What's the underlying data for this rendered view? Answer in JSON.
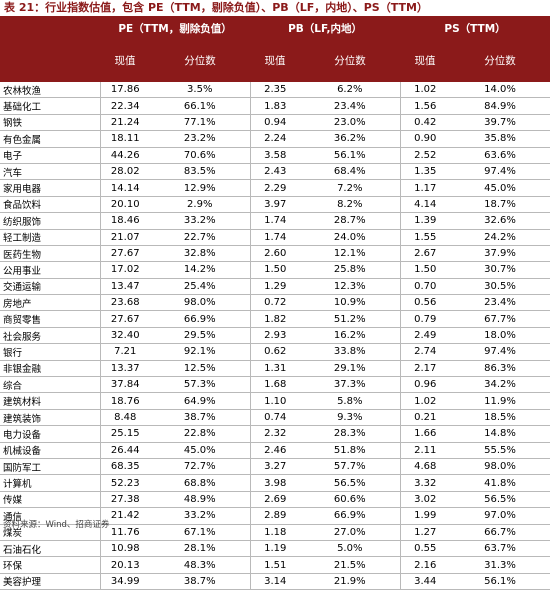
{
  "title": "表 21：行业指数估值，包含 PE（TTM，剔除负值）、PB（LF，内地）、PS（TTM）",
  "headers": {
    "pe": "PE（TTM，剔除负值）",
    "pb": "PB（LF,内地）",
    "ps": "PS（TTM）",
    "value": "现值",
    "percentile": "分位数"
  },
  "rows": [
    {
      "industry": "农林牧渔",
      "pe": "17.86",
      "pe_pct": "3.5%",
      "pb": "2.35",
      "pb_pct": "6.2%",
      "ps": "1.02",
      "ps_pct": "14.0%"
    },
    {
      "industry": "基础化工",
      "pe": "22.34",
      "pe_pct": "66.1%",
      "pb": "1.83",
      "pb_pct": "23.4%",
      "ps": "1.56",
      "ps_pct": "84.9%"
    },
    {
      "industry": "钢铁",
      "pe": "21.24",
      "pe_pct": "77.1%",
      "pb": "0.94",
      "pb_pct": "23.0%",
      "ps": "0.42",
      "ps_pct": "39.7%"
    },
    {
      "industry": "有色金属",
      "pe": "18.11",
      "pe_pct": "23.2%",
      "pb": "2.24",
      "pb_pct": "36.2%",
      "ps": "0.90",
      "ps_pct": "35.8%"
    },
    {
      "industry": "电子",
      "pe": "44.26",
      "pe_pct": "70.6%",
      "pb": "3.58",
      "pb_pct": "56.1%",
      "ps": "2.52",
      "ps_pct": "63.6%"
    },
    {
      "industry": "汽车",
      "pe": "28.02",
      "pe_pct": "83.5%",
      "pb": "2.43",
      "pb_pct": "68.4%",
      "ps": "1.35",
      "ps_pct": "97.4%"
    },
    {
      "industry": "家用电器",
      "pe": "14.14",
      "pe_pct": "12.9%",
      "pb": "2.29",
      "pb_pct": "7.2%",
      "ps": "1.17",
      "ps_pct": "45.0%"
    },
    {
      "industry": "食品饮料",
      "pe": "20.10",
      "pe_pct": "2.9%",
      "pb": "3.97",
      "pb_pct": "8.2%",
      "ps": "4.14",
      "ps_pct": "18.7%"
    },
    {
      "industry": "纺织服饰",
      "pe": "18.46",
      "pe_pct": "33.2%",
      "pb": "1.74",
      "pb_pct": "28.7%",
      "ps": "1.39",
      "ps_pct": "32.6%"
    },
    {
      "industry": "轻工制造",
      "pe": "21.07",
      "pe_pct": "22.7%",
      "pb": "1.74",
      "pb_pct": "24.0%",
      "ps": "1.55",
      "ps_pct": "24.2%"
    },
    {
      "industry": "医药生物",
      "pe": "27.67",
      "pe_pct": "32.8%",
      "pb": "2.60",
      "pb_pct": "12.1%",
      "ps": "2.67",
      "ps_pct": "37.9%"
    },
    {
      "industry": "公用事业",
      "pe": "17.02",
      "pe_pct": "14.2%",
      "pb": "1.50",
      "pb_pct": "25.8%",
      "ps": "1.50",
      "ps_pct": "30.7%"
    },
    {
      "industry": "交通运输",
      "pe": "13.47",
      "pe_pct": "25.4%",
      "pb": "1.29",
      "pb_pct": "12.3%",
      "ps": "0.70",
      "ps_pct": "30.5%"
    },
    {
      "industry": "房地产",
      "pe": "23.68",
      "pe_pct": "98.0%",
      "pb": "0.72",
      "pb_pct": "10.9%",
      "ps": "0.56",
      "ps_pct": "23.4%"
    },
    {
      "industry": "商贸零售",
      "pe": "27.67",
      "pe_pct": "66.9%",
      "pb": "1.82",
      "pb_pct": "51.2%",
      "ps": "0.79",
      "ps_pct": "67.7%"
    },
    {
      "industry": "社会服务",
      "pe": "32.40",
      "pe_pct": "29.5%",
      "pb": "2.93",
      "pb_pct": "16.2%",
      "ps": "2.49",
      "ps_pct": "18.0%"
    },
    {
      "industry": "银行",
      "pe": "7.21",
      "pe_pct": "92.1%",
      "pb": "0.62",
      "pb_pct": "33.8%",
      "ps": "2.74",
      "ps_pct": "97.4%"
    },
    {
      "industry": "非银金融",
      "pe": "13.37",
      "pe_pct": "12.5%",
      "pb": "1.31",
      "pb_pct": "29.1%",
      "ps": "2.17",
      "ps_pct": "86.3%"
    },
    {
      "industry": "综合",
      "pe": "37.84",
      "pe_pct": "57.3%",
      "pb": "1.68",
      "pb_pct": "37.3%",
      "ps": "0.96",
      "ps_pct": "34.2%"
    },
    {
      "industry": "建筑材料",
      "pe": "18.76",
      "pe_pct": "64.9%",
      "pb": "1.10",
      "pb_pct": "5.8%",
      "ps": "1.02",
      "ps_pct": "11.9%"
    },
    {
      "industry": "建筑装饰",
      "pe": "8.48",
      "pe_pct": "38.7%",
      "pb": "0.74",
      "pb_pct": "9.3%",
      "ps": "0.21",
      "ps_pct": "18.5%"
    },
    {
      "industry": "电力设备",
      "pe": "25.15",
      "pe_pct": "22.8%",
      "pb": "2.32",
      "pb_pct": "28.3%",
      "ps": "1.66",
      "ps_pct": "14.8%"
    },
    {
      "industry": "机械设备",
      "pe": "26.44",
      "pe_pct": "45.0%",
      "pb": "2.46",
      "pb_pct": "51.8%",
      "ps": "2.11",
      "ps_pct": "55.5%"
    },
    {
      "industry": "国防军工",
      "pe": "68.35",
      "pe_pct": "72.7%",
      "pb": "3.27",
      "pb_pct": "57.7%",
      "ps": "4.68",
      "ps_pct": "98.0%"
    },
    {
      "industry": "计算机",
      "pe": "52.23",
      "pe_pct": "68.8%",
      "pb": "3.98",
      "pb_pct": "56.5%",
      "ps": "3.32",
      "ps_pct": "41.8%"
    },
    {
      "industry": "传媒",
      "pe": "27.38",
      "pe_pct": "48.9%",
      "pb": "2.69",
      "pb_pct": "60.6%",
      "ps": "3.02",
      "ps_pct": "56.5%"
    },
    {
      "industry": "通信",
      "pe": "21.42",
      "pe_pct": "33.2%",
      "pb": "2.89",
      "pb_pct": "66.9%",
      "ps": "1.99",
      "ps_pct": "97.0%"
    },
    {
      "industry": "煤炭",
      "pe": "11.76",
      "pe_pct": "67.1%",
      "pb": "1.18",
      "pb_pct": "27.0%",
      "ps": "1.27",
      "ps_pct": "66.7%"
    },
    {
      "industry": "石油石化",
      "pe": "10.98",
      "pe_pct": "28.1%",
      "pb": "1.19",
      "pb_pct": "5.0%",
      "ps": "0.55",
      "ps_pct": "63.7%"
    },
    {
      "industry": "环保",
      "pe": "20.13",
      "pe_pct": "48.3%",
      "pb": "1.51",
      "pb_pct": "21.5%",
      "ps": "2.16",
      "ps_pct": "31.3%"
    },
    {
      "industry": "美容护理",
      "pe": "34.99",
      "pe_pct": "38.7%",
      "pb": "3.14",
      "pb_pct": "21.9%",
      "ps": "3.44",
      "ps_pct": "56.1%"
    }
  ],
  "footer": "资料来源：Wind、招商证券"
}
